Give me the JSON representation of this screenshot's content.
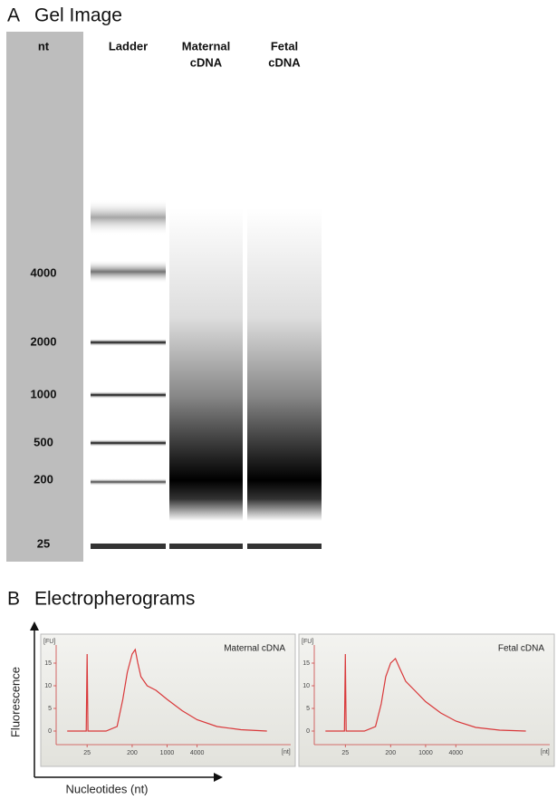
{
  "panel_a": {
    "letter": "A",
    "title": "Gel Image",
    "axis_header": "nt",
    "size_labels": [
      4000,
      2000,
      1000,
      500,
      200,
      25
    ],
    "lanes": [
      [
        "Ladder"
      ],
      [
        "Maternal",
        "cDNA"
      ],
      [
        "Fetal",
        "cDNA"
      ]
    ]
  },
  "panel_b": {
    "letter": "B",
    "title": "Electropherograms",
    "y_label": "Fluorescence",
    "x_label": "Nucleotides (nt)"
  },
  "chart_data": [
    {
      "type": "line",
      "title": "Maternal cDNA",
      "y_unit": "[FU]",
      "x_unit": "[nt]",
      "xscale": "log",
      "x": [
        10,
        22,
        24,
        25,
        26,
        28,
        60,
        100,
        130,
        160,
        200,
        230,
        260,
        300,
        400,
        600,
        1000,
        2000,
        4000,
        10000,
        30000,
        100000
      ],
      "series": [
        {
          "color": "#d9383a",
          "values": [
            0,
            0,
            0,
            17,
            0,
            0,
            0,
            1,
            7,
            13,
            17,
            18,
            15,
            12,
            10,
            9,
            7,
            4.5,
            2.5,
            1,
            0.3,
            0
          ]
        }
      ],
      "xlim": [
        6,
        300000
      ],
      "xticks": [
        25,
        200,
        1000,
        4000
      ],
      "ylim": [
        -3,
        19
      ],
      "yticks": [
        0,
        5,
        10,
        15
      ]
    },
    {
      "type": "line",
      "title": "Fetal cDNA",
      "y_unit": "[FU]",
      "x_unit": "[nt]",
      "xscale": "log",
      "x": [
        10,
        22,
        24,
        25,
        26,
        28,
        60,
        100,
        130,
        160,
        200,
        250,
        300,
        400,
        600,
        1000,
        2000,
        4000,
        10000,
        30000,
        100000
      ],
      "series": [
        {
          "color": "#d9383a",
          "values": [
            0,
            0,
            0,
            17,
            0,
            0,
            0,
            1,
            6,
            12,
            15,
            16,
            14,
            11,
            9,
            6.5,
            4,
            2.2,
            0.8,
            0.2,
            0
          ]
        }
      ],
      "xlim": [
        6,
        300000
      ],
      "xticks": [
        25,
        200,
        1000,
        4000
      ],
      "ylim": [
        -3,
        19
      ],
      "yticks": [
        0,
        5,
        10,
        15
      ]
    }
  ]
}
